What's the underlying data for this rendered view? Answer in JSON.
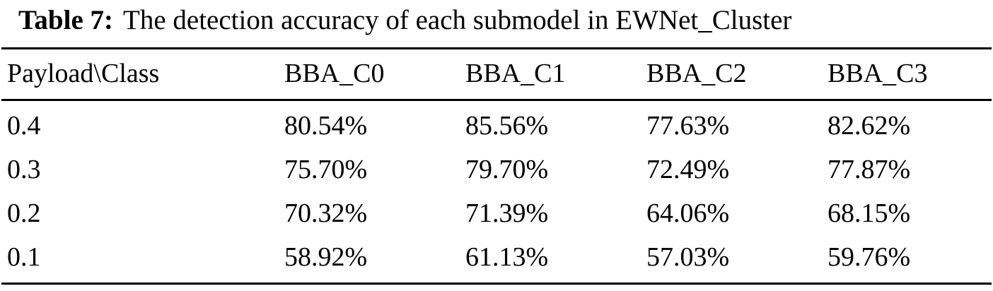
{
  "caption": {
    "label": "Table 7:",
    "text": "The detection accuracy of each submodel in EWNet_Cluster"
  },
  "table": {
    "headers": [
      "Payload\\Class",
      "BBA_C0",
      "BBA_C1",
      "BBA_C2",
      "BBA_C3"
    ],
    "rows": [
      [
        "0.4",
        "80.54%",
        "85.56%",
        "77.63%",
        "82.62%"
      ],
      [
        "0.3",
        "75.70%",
        "79.70%",
        "72.49%",
        "77.87%"
      ],
      [
        "0.2",
        "70.32%",
        "71.39%",
        "64.06%",
        "68.15%"
      ],
      [
        "0.1",
        "58.92%",
        "61.13%",
        "57.03%",
        "59.76%"
      ]
    ]
  }
}
